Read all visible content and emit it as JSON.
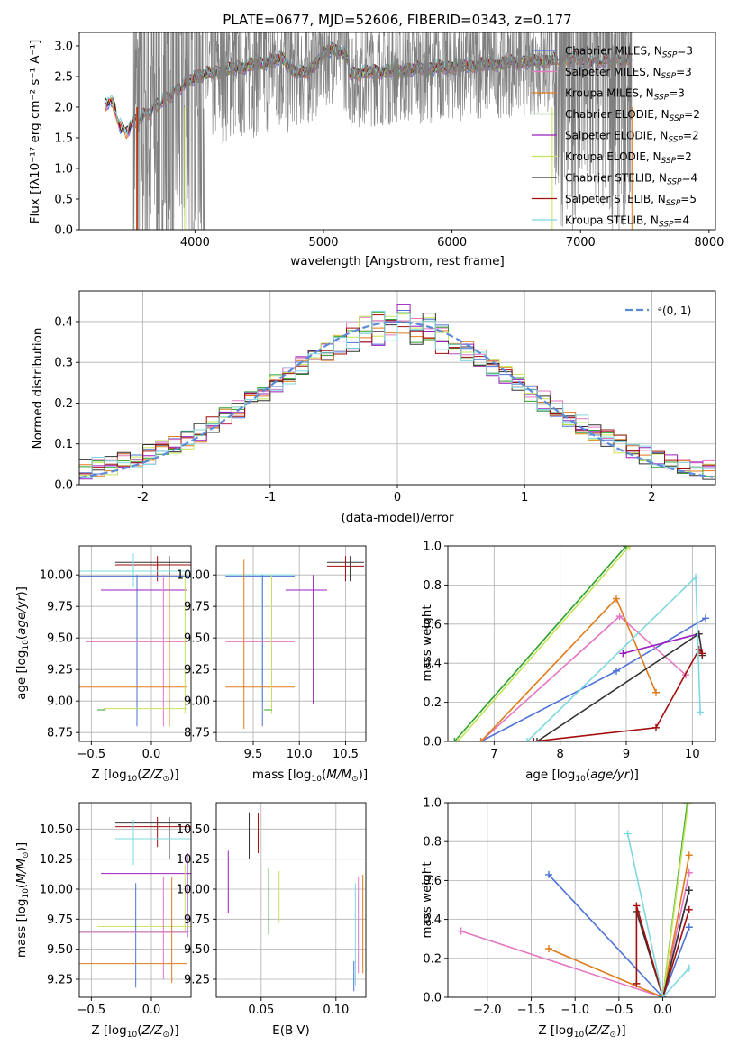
{
  "colors": {
    "chabrier_miles": "#4c72d6",
    "salpeter_miles": "#e377c2",
    "kroupa_miles": "#e07b1a",
    "chabrier_elodie": "#2ca02c",
    "salpeter_elodie": "#9b1fbf",
    "kroupa_elodie": "#c5e35a",
    "chabrier_stelib": "#333333",
    "salpeter_stelib": "#a30d0d",
    "kroupa_stelib": "#7dd8df",
    "spectrum": "#7f7f7f",
    "normal": "#5b8bd8"
  },
  "chart_data": [
    {
      "id": "spectrum",
      "type": "line",
      "title": "PLATE=0677, MJD=52606, FIBERID=0343, z=0.177",
      "xlabel": "wavelength [Angstrom, rest frame]",
      "ylabel": "Flux [fλ10⁻¹⁷ erg cm⁻² s⁻¹ A⁻¹]",
      "xlim": [
        3100,
        8050
      ],
      "ylim": [
        0,
        3.22
      ],
      "xticks": [
        "4000",
        "5000",
        "6000",
        "7000",
        "8000"
      ],
      "yticks": [
        "0.0",
        "0.5",
        "1.0",
        "1.5",
        "2.0",
        "2.5",
        "3.0"
      ],
      "legend": [
        {
          "label": "Chabrier MILES, N_SSP=3",
          "color_key": "chabrier_miles"
        },
        {
          "label": "Salpeter MILES, N_SSP=3",
          "color_key": "salpeter_miles"
        },
        {
          "label": "Kroupa MILES, N_SSP=3",
          "color_key": "kroupa_miles"
        },
        {
          "label": "Chabrier ELODIE, N_SSP=2",
          "color_key": "chabrier_elodie"
        },
        {
          "label": "Salpeter ELODIE, N_SSP=2",
          "color_key": "salpeter_elodie"
        },
        {
          "label": "Kroupa ELODIE, N_SSP=2",
          "color_key": "kroupa_elodie"
        },
        {
          "label": "Chabrier STELIB, N_SSP=4",
          "color_key": "chabrier_stelib"
        },
        {
          "label": "Salpeter STELIB, N_SSP=5",
          "color_key": "salpeter_stelib"
        },
        {
          "label": "Kroupa STELIB, N_SSP=4",
          "color_key": "kroupa_stelib"
        }
      ],
      "legend_position": "right",
      "grid": false
    },
    {
      "id": "residuals",
      "type": "step",
      "xlabel": "(data-model)/error",
      "ylabel": "Normed distribution",
      "xlim": [
        -2.5,
        2.5
      ],
      "ylim": [
        0,
        0.475
      ],
      "xticks": [
        -2,
        -1,
        0,
        1,
        2
      ],
      "yticks": [
        "0.0",
        "0.1",
        "0.2",
        "0.3",
        "0.4"
      ],
      "legend": [
        "ᵊ(0, 1)"
      ],
      "legend_position": "top-right",
      "grid": true
    },
    {
      "id": "age_vs_Z",
      "type": "errorbar",
      "xlabel": "Z [log10(Z/Z⊙)]",
      "ylabel": "age  [log10(age/yr)]",
      "xlim": [
        -0.6,
        0.33
      ],
      "ylim": [
        8.68,
        10.23
      ],
      "xticks": [
        "−0.5",
        "0.0"
      ],
      "yticks": [
        "8.75",
        "9.00",
        "9.25",
        "9.50",
        "9.75",
        "10.00"
      ],
      "grid": true
    },
    {
      "id": "age_vs_mass",
      "type": "errorbar",
      "xlabel": "mass [log10(M/M⊙)]",
      "xlim": [
        9.1,
        10.72
      ],
      "ylim": [
        8.68,
        10.23
      ],
      "xticks": [
        "9.5",
        "10.0",
        "10.5"
      ],
      "yticks": [
        "8.75",
        "9.00",
        "9.25",
        "9.50",
        "9.75",
        "10.00"
      ],
      "grid": true
    },
    {
      "id": "weight_vs_age",
      "type": "line",
      "xlabel": "age  [log10(age/yr)]",
      "ylabel": "mass weight",
      "xlim": [
        6.3,
        10.35
      ],
      "ylim": [
        0,
        1.0
      ],
      "xticks": [
        "7",
        "8",
        "9",
        "10"
      ],
      "yticks": [
        "0.0",
        "0.2",
        "0.4",
        "0.6",
        "0.8",
        "1.0"
      ],
      "grid": true
    },
    {
      "id": "mass_vs_Z",
      "type": "errorbar",
      "xlabel": "Z [log10(Z/Z⊙)]",
      "ylabel": "mass [log10(M/M⊙)]",
      "xlim": [
        -0.6,
        0.33
      ],
      "ylim": [
        9.1,
        10.72
      ],
      "xticks": [
        "−0.5",
        "0.0"
      ],
      "yticks": [
        "9.25",
        "9.50",
        "9.75",
        "10.00",
        "10.25",
        "10.50"
      ],
      "grid": true
    },
    {
      "id": "mass_vs_ebv",
      "type": "errorbar",
      "xlabel": "E(B-V)",
      "xlim": [
        0.02,
        0.12
      ],
      "ylim": [
        9.1,
        10.72
      ],
      "xticks": [
        "0.05",
        "0.10"
      ],
      "yticks": [
        "9.25",
        "9.50",
        "9.75",
        "10.00",
        "10.25",
        "10.50"
      ],
      "grid": true
    },
    {
      "id": "weight_vs_Z",
      "type": "line",
      "xlabel": "Z [log10(Z/Z⊙)]",
      "ylabel": "mass weight",
      "xlim": [
        -2.45,
        0.6
      ],
      "ylim": [
        0,
        1.0
      ],
      "xticks": [
        "−2.0",
        "−1.5",
        "−1.0",
        "−0.5",
        "0.0"
      ],
      "yticks": [
        "0.0",
        "0.2",
        "0.4",
        "0.6",
        "0.8",
        "1.0"
      ],
      "grid": true
    }
  ],
  "series_values": {
    "weight_vs_age": [
      {
        "key": "chabrier_miles",
        "pts": [
          [
            6.8,
            0.0
          ],
          [
            8.85,
            0.36
          ],
          [
            10.2,
            0.63
          ]
        ]
      },
      {
        "key": "salpeter_miles",
        "pts": [
          [
            6.8,
            0.0
          ],
          [
            8.9,
            0.64
          ],
          [
            9.9,
            0.34
          ]
        ]
      },
      {
        "key": "kroupa_miles",
        "pts": [
          [
            6.8,
            0.0
          ],
          [
            8.85,
            0.73
          ],
          [
            9.45,
            0.25
          ]
        ]
      },
      {
        "key": "chabrier_elodie",
        "pts": [
          [
            6.4,
            0.0
          ],
          [
            9.0,
            1.0
          ]
        ]
      },
      {
        "key": "salpeter_elodie",
        "pts": [
          [
            8.95,
            0.45
          ],
          [
            10.1,
            0.55
          ]
        ]
      },
      {
        "key": "kroupa_elodie",
        "pts": [
          [
            6.45,
            0.0
          ],
          [
            9.05,
            1.0
          ]
        ]
      },
      {
        "key": "chabrier_stelib",
        "pts": [
          [
            7.65,
            0.0
          ],
          [
            10.1,
            0.55
          ],
          [
            10.15,
            0.44
          ]
        ]
      },
      {
        "key": "salpeter_stelib",
        "pts": [
          [
            7.6,
            0.0
          ],
          [
            9.45,
            0.07
          ],
          [
            10.1,
            0.47
          ],
          [
            10.15,
            0.45
          ]
        ]
      },
      {
        "key": "kroupa_stelib",
        "pts": [
          [
            7.5,
            0.0
          ],
          [
            10.05,
            0.84
          ],
          [
            10.12,
            0.15
          ]
        ]
      }
    ],
    "weight_vs_Z": [
      {
        "key": "chabrier_miles",
        "pts": [
          [
            -1.3,
            0.63
          ],
          [
            0.0,
            0.0
          ],
          [
            0.3,
            0.36
          ]
        ]
      },
      {
        "key": "salpeter_miles",
        "pts": [
          [
            -2.3,
            0.34
          ],
          [
            0.0,
            0.0
          ],
          [
            0.3,
            0.64
          ]
        ]
      },
      {
        "key": "kroupa_miles",
        "pts": [
          [
            -1.3,
            0.25
          ],
          [
            0.0,
            0.0
          ],
          [
            0.3,
            0.73
          ]
        ]
      },
      {
        "key": "chabrier_elodie",
        "pts": [
          [
            0.0,
            0.0
          ],
          [
            0.28,
            1.0
          ]
        ]
      },
      {
        "key": "salpeter_elodie",
        "pts": [
          [
            0.0,
            0.0
          ],
          [
            0.3,
            0.55
          ]
        ]
      },
      {
        "key": "kroupa_elodie",
        "pts": [
          [
            0.0,
            0.0
          ],
          [
            0.29,
            1.0
          ]
        ]
      },
      {
        "key": "chabrier_stelib",
        "pts": [
          [
            -0.3,
            0.44
          ],
          [
            0.0,
            0.0
          ],
          [
            0.3,
            0.55
          ]
        ]
      },
      {
        "key": "salpeter_stelib",
        "pts": [
          [
            -0.3,
            0.07
          ],
          [
            -0.3,
            0.47
          ],
          [
            0.0,
            0.0
          ],
          [
            0.3,
            0.45
          ]
        ]
      },
      {
        "key": "kroupa_stelib",
        "pts": [
          [
            -0.4,
            0.84
          ],
          [
            0.0,
            0.0
          ],
          [
            0.3,
            0.15
          ]
        ]
      }
    ]
  }
}
